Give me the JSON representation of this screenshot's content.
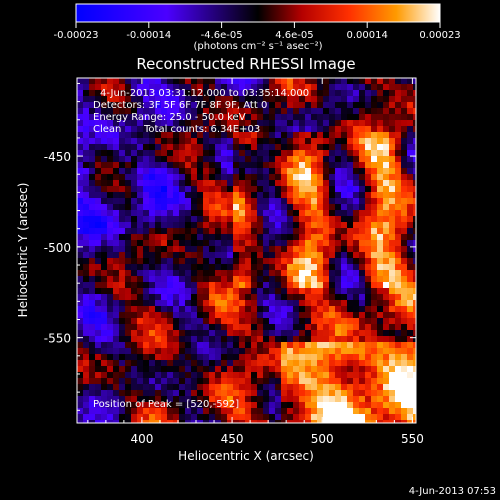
{
  "colorbar": {
    "ticks": [
      "-0.00023",
      "-0.00014",
      "-4.6e-05",
      "4.6e-05",
      "0.00014",
      "0.00023"
    ],
    "units": "(photons cm⁻² s⁻¹ asec⁻²)",
    "range": [
      -0.00023,
      0.00023
    ],
    "colormap": [
      "#0000ff",
      "#4b00ff",
      "#000000",
      "#b40000",
      "#ff3000",
      "#ff9a00",
      "#ffffff"
    ]
  },
  "chart_data": {
    "type": "heatmap",
    "title": "Reconstructed RHESSI Image",
    "xlabel": "Heliocentric X (arcsec)",
    "ylabel": "Heliocentric Y (arcsec)",
    "xlim": [
      364,
      552
    ],
    "ylim": [
      -597,
      -407
    ],
    "xticks": [
      "400",
      "450",
      "500",
      "550"
    ],
    "yticks": [
      "-450",
      "-500",
      "-550"
    ],
    "xtick_values": [
      400,
      450,
      500,
      550
    ],
    "ytick_values": [
      -450,
      -500,
      -550
    ],
    "grid": false,
    "peak_position": [
      520,
      -592
    ],
    "annotations": {
      "time_range": "4-Jun-2013 03:31:12.000 to 03:35:14.000",
      "detectors": "Detectors: 3F 5F 6F 7F 8F 9F, Att 0",
      "energy": "Energy Range: 25.0 - 50.0 keV",
      "method": "Clean",
      "counts": "Total counts: 6.34E+03",
      "peak": "Position of Peak = [520,-592]"
    }
  },
  "footer": {
    "timestamp": "4-Jun-2013 07:53"
  }
}
